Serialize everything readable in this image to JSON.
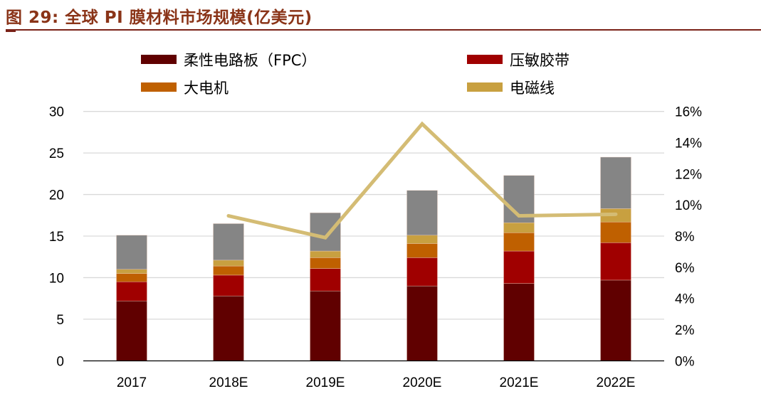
{
  "figure": {
    "title": "图 29:  全球 PI 膜材料市场规模(亿美元)"
  },
  "chart_data": {
    "type": "bar",
    "stacked": true,
    "categories": [
      "2017",
      "2018E",
      "2019E",
      "2020E",
      "2021E",
      "2022E"
    ],
    "series": [
      {
        "name": "柔性电路板（FPC）",
        "color": "#600000",
        "values": [
          7.2,
          7.8,
          8.4,
          9.0,
          9.3,
          9.7
        ]
      },
      {
        "name": "压敏胶带",
        "color": "#A00000",
        "values": [
          2.3,
          2.5,
          2.7,
          3.4,
          3.9,
          4.5
        ]
      },
      {
        "name": "大电机",
        "color": "#BF6000",
        "values": [
          1.0,
          1.1,
          1.3,
          1.7,
          2.2,
          2.5
        ]
      },
      {
        "name": "电磁线",
        "color": "#C8A040",
        "values": [
          0.5,
          0.7,
          0.8,
          1.0,
          1.2,
          1.6
        ]
      },
      {
        "color": "#858585",
        "values": [
          4.1,
          4.4,
          4.6,
          5.4,
          5.7,
          6.2
        ]
      }
    ],
    "line_series": {
      "axis": "right",
      "color": "#D4BC74",
      "values": [
        null,
        9.3,
        7.9,
        15.2,
        9.3,
        9.4
      ]
    },
    "ylim": [
      0,
      30
    ],
    "yticks": [
      "0",
      "5",
      "10",
      "15",
      "20",
      "25",
      "30"
    ],
    "y2lim": [
      0,
      16
    ],
    "y2ticks": [
      "0%",
      "2%",
      "4%",
      "6%",
      "8%",
      "10%",
      "12%",
      "14%",
      "16%"
    ],
    "grid": true,
    "legend_position": "top"
  }
}
